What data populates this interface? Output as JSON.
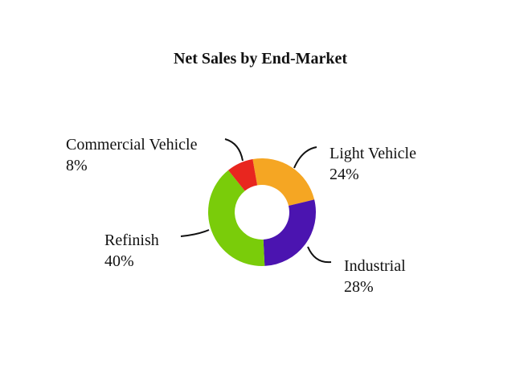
{
  "chart_data": {
    "type": "pie",
    "variant": "donut",
    "title": "Net Sales by End-Market",
    "slices": [
      {
        "label": "Light Vehicle",
        "value": 24,
        "value_label": "24%",
        "color": "#F5A623"
      },
      {
        "label": "Industrial",
        "value": 28,
        "value_label": "28%",
        "color": "#4B14B0"
      },
      {
        "label": "Refinish",
        "value": 40,
        "value_label": "40%",
        "color": "#7ACC0A"
      },
      {
        "label": "Commercial Vehicle",
        "value": 8,
        "value_label": "8%",
        "color": "#E8261F"
      }
    ],
    "legend": "none"
  }
}
